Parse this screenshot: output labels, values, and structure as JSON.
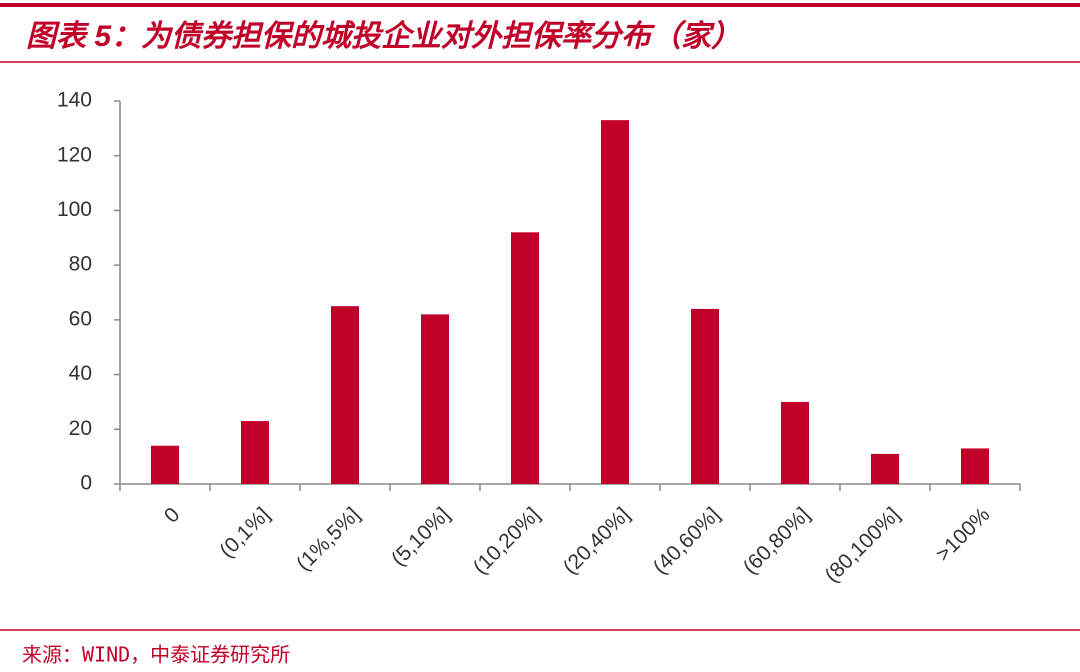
{
  "chart_data": {
    "type": "bar",
    "title": "图表 5：为债券担保的城投企业对外担保率分布（家）",
    "source": "来源：WIND，中泰证券研究所",
    "categories": [
      "0",
      "(0,1%]",
      "(1%,5%]",
      "(5,10%]",
      "(10,20%]",
      "(20,40%]",
      "(40,60%]",
      "(60,80%]",
      "(80,100%]",
      ">100%"
    ],
    "values": [
      14,
      23,
      65,
      62,
      92,
      133,
      64,
      30,
      11,
      13
    ],
    "color": "#c00028",
    "ylim": [
      0,
      140
    ],
    "yticks": [
      0,
      20,
      40,
      60,
      80,
      100,
      120,
      140
    ],
    "grid": false
  }
}
